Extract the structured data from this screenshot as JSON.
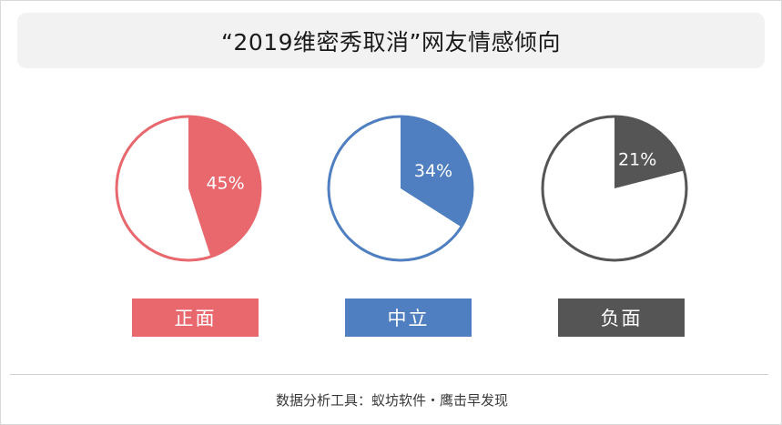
{
  "title": "“2019维密秀取消”网友情感倾向",
  "chart_data": {
    "type": "pie",
    "title": "“2019维密秀取消”网友情感倾向",
    "series": [
      {
        "name": "正面",
        "value": 45,
        "label": "45%",
        "color": "#e8686e"
      },
      {
        "name": "中立",
        "value": 34,
        "label": "34%",
        "color": "#4f7fc0"
      },
      {
        "name": "负面",
        "value": 21,
        "label": "21%",
        "color": "#555555"
      }
    ]
  },
  "footer": "数据分析工具：蚁坊软件・鹰击早发现"
}
